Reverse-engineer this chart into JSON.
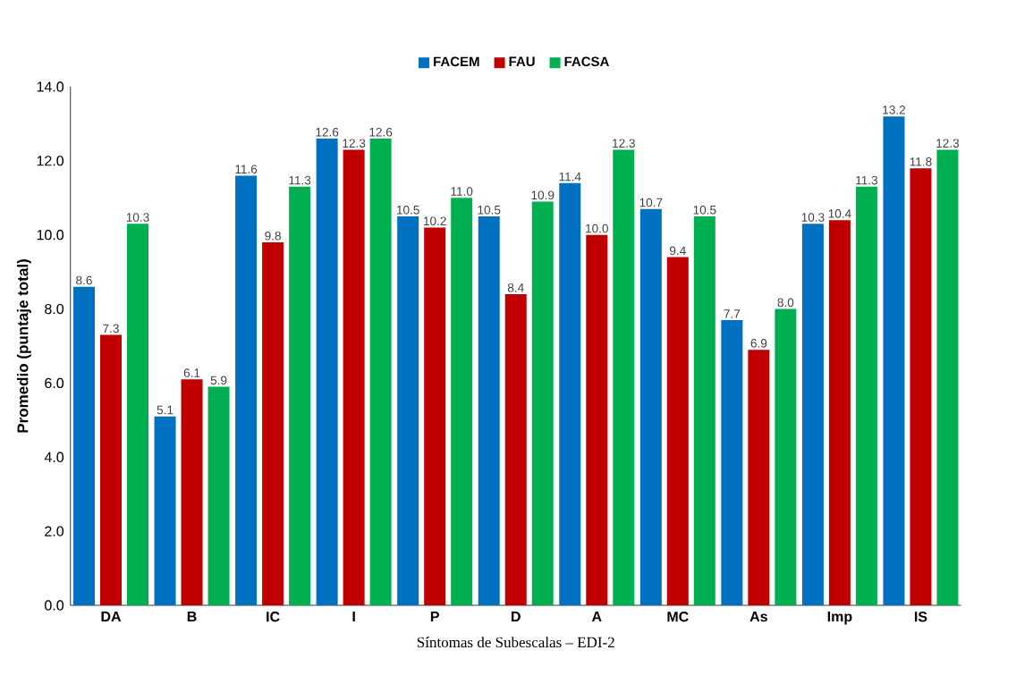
{
  "chart_data": {
    "type": "bar",
    "xlabel": "Síntomas de Subescalas – EDI-2",
    "ylabel": "Promedio (puntaje total)",
    "categories": [
      "DA",
      "B",
      "IC",
      "I",
      "P",
      "D",
      "A",
      "MC",
      "As",
      "Imp",
      "IS"
    ],
    "series": [
      {
        "name": "FACEM",
        "color": "#0070c0",
        "values": [
          8.6,
          5.1,
          11.6,
          12.6,
          10.5,
          10.5,
          11.4,
          10.7,
          7.7,
          10.3,
          13.2
        ],
        "value_labels": [
          "8.6",
          "5.1",
          "11.6",
          "12.6",
          "10.5",
          "10.5",
          "11.4",
          "10.7",
          "7.7",
          "10.3",
          "13.2"
        ]
      },
      {
        "name": "FAU",
        "color": "#c00000",
        "values": [
          7.3,
          6.1,
          9.8,
          12.3,
          10.2,
          8.4,
          10.0,
          9.4,
          6.9,
          10.4,
          11.8
        ],
        "value_labels": [
          "7.3",
          "6.1",
          "9.8",
          "12.3",
          "10.2",
          "8.4",
          "10.0",
          "9.4",
          "6.9",
          "10.4",
          "11.8"
        ]
      },
      {
        "name": "FACSA",
        "color": "#00b050",
        "values": [
          10.3,
          5.9,
          11.3,
          12.6,
          11.0,
          10.9,
          12.3,
          10.5,
          8.0,
          11.3,
          12.3
        ],
        "value_labels": [
          "10.3",
          "5.9",
          "11.3",
          "12.6",
          "11.0",
          "10.9",
          "12.3",
          "10.5",
          "8.0",
          "11.3",
          "12.3"
        ]
      }
    ],
    "ylim": [
      0,
      14
    ],
    "yticks": [
      {
        "value": 0,
        "label": "0.0"
      },
      {
        "value": 2,
        "label": "2.0"
      },
      {
        "value": 4,
        "label": "4.0"
      },
      {
        "value": 6,
        "label": "6.0"
      },
      {
        "value": 8,
        "label": "8.0"
      },
      {
        "value": 10,
        "label": "10.0"
      },
      {
        "value": 12,
        "label": "12.0"
      },
      {
        "value": 14,
        "label": "14.0"
      }
    ],
    "legend": "top",
    "grid": false
  }
}
